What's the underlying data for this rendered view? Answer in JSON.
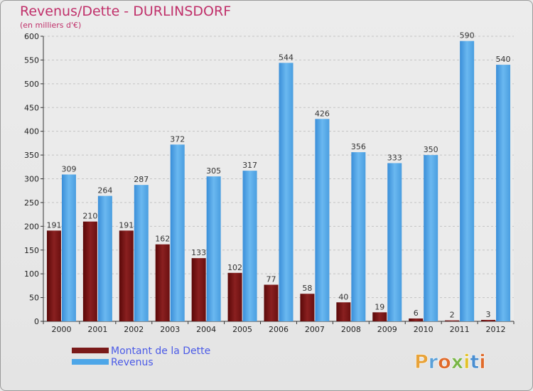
{
  "chart_data": {
    "type": "bar",
    "title": "Revenus/Dette - DURLINSDORF",
    "subtitle": "(en milliers d'€)",
    "xlabel": "",
    "ylabel": "",
    "ylim": [
      0,
      600
    ],
    "yticks": [
      0,
      50,
      100,
      150,
      200,
      250,
      300,
      350,
      400,
      450,
      500,
      550,
      600
    ],
    "categories": [
      "2000",
      "2001",
      "2002",
      "2003",
      "2004",
      "2005",
      "2006",
      "2007",
      "2008",
      "2009",
      "2010",
      "2011",
      "2012"
    ],
    "series": [
      {
        "name": "Montant de la Dette",
        "color": "#7a1a1a",
        "values": [
          191,
          210,
          191,
          162,
          133,
          102,
          77,
          58,
          40,
          19,
          6,
          2,
          3
        ]
      },
      {
        "name": "Revenus",
        "color": "#4da6e8",
        "values": [
          309,
          264,
          287,
          372,
          305,
          317,
          544,
          426,
          356,
          333,
          350,
          590,
          540
        ]
      }
    ],
    "grid": true,
    "legend_position": "bottom-left"
  },
  "brand": {
    "text": "Proxiti",
    "letters": [
      "P",
      "r",
      "o",
      "x",
      "i",
      "t",
      "i"
    ],
    "colors": [
      "#e8a33a",
      "#5aa0d8",
      "#e06a2a",
      "#7ab648",
      "#e3c22a",
      "#4a8ed0",
      "#e06a2a"
    ]
  }
}
